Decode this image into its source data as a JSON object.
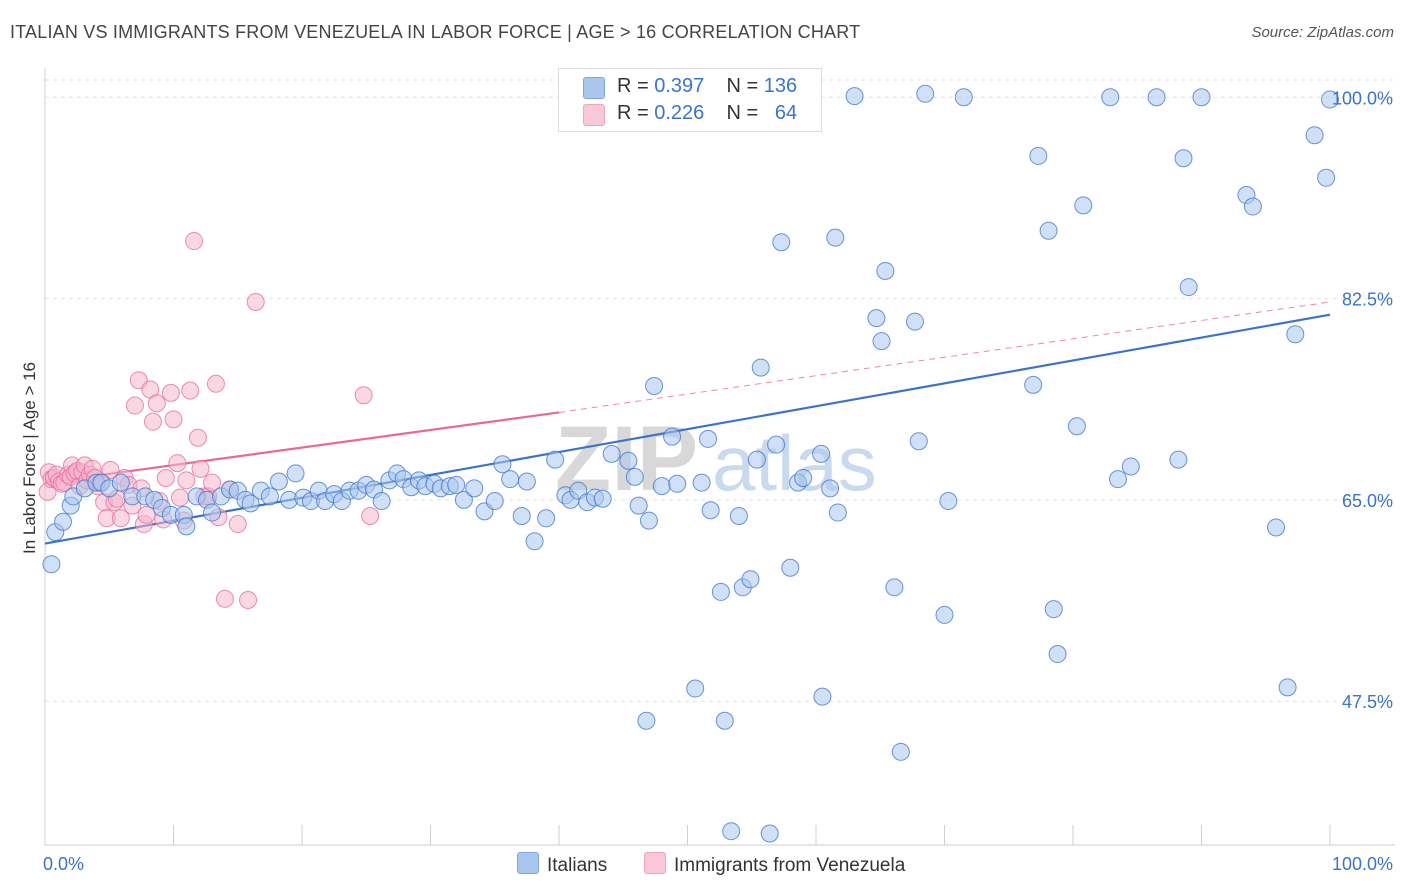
{
  "header": {
    "title": "ITALIAN VS IMMIGRANTS FROM VENEZUELA IN LABOR FORCE | AGE > 16 CORRELATION CHART",
    "source": "Source: ZipAtlas.com"
  },
  "legend": {
    "rows": [
      {
        "r_label": "R =",
        "r_value": "0.397",
        "n_label": "N =",
        "n_value": "136"
      },
      {
        "r_label": "R =",
        "r_value": "0.226",
        "n_label": "N =",
        "n_value": "64"
      }
    ]
  },
  "bottom_legend": {
    "italians": "Italians",
    "venezuela": "Immigrants from Venezuela"
  },
  "watermark": {
    "zip": "ZIP",
    "atlas": "atlas"
  },
  "colors": {
    "blue": "#3b73c8",
    "blue_fill": "#a9c6ee",
    "pink": "#e8689a",
    "pink_fill": "#f4b6cc",
    "grid": "#e3e3e3",
    "axis_label": "#3b73c8"
  },
  "chart_data": {
    "type": "scatter",
    "title": "ITALIAN VS IMMIGRANTS FROM VENEZUELA IN LABOR FORCE | AGE > 16 CORRELATION CHART",
    "xlabel": "",
    "ylabel": "In Labor Force | Age > 16",
    "xlim": [
      0,
      100
    ],
    "ylim": [
      35,
      101.5
    ],
    "x_tick_labels": [
      "0.0%",
      "100.0%"
    ],
    "y_ticks": [
      47.5,
      65.0,
      82.5,
      100.0
    ],
    "y_tick_labels": [
      "47.5%",
      "65.0%",
      "82.5%",
      "100.0%"
    ],
    "grid": true,
    "legend_placement": "top-center",
    "series": [
      {
        "name": "Italians",
        "color": "#3b73c8",
        "R": 0.397,
        "N": 136,
        "trend": {
          "x": [
            0,
            100
          ],
          "y": [
            61.2,
            81.1
          ]
        },
        "points": [
          [
            0.5,
            59.4
          ],
          [
            0.8,
            62.2
          ],
          [
            1.4,
            63.1
          ],
          [
            2.0,
            64.5
          ],
          [
            2.2,
            65.3
          ],
          [
            3.1,
            66.0
          ],
          [
            4.0,
            66.5
          ],
          [
            4.4,
            66.5
          ],
          [
            5.0,
            66.0
          ],
          [
            5.9,
            66.5
          ],
          [
            6.8,
            65.3
          ],
          [
            7.8,
            65.3
          ],
          [
            8.5,
            65.0
          ],
          [
            9.1,
            64.3
          ],
          [
            9.8,
            63.7
          ],
          [
            10.8,
            63.7
          ],
          [
            11.0,
            62.7
          ],
          [
            11.8,
            65.3
          ],
          [
            12.6,
            65.0
          ],
          [
            13.0,
            63.9
          ],
          [
            13.7,
            65.3
          ],
          [
            14.4,
            65.9
          ],
          [
            15.0,
            65.8
          ],
          [
            15.6,
            65.0
          ],
          [
            16.0,
            64.7
          ],
          [
            16.8,
            65.8
          ],
          [
            17.5,
            65.3
          ],
          [
            18.2,
            66.6
          ],
          [
            19.0,
            65.0
          ],
          [
            19.5,
            67.3
          ],
          [
            20.1,
            65.2
          ],
          [
            20.7,
            64.9
          ],
          [
            21.3,
            65.8
          ],
          [
            21.8,
            64.9
          ],
          [
            22.5,
            65.5
          ],
          [
            23.1,
            64.9
          ],
          [
            23.7,
            65.8
          ],
          [
            24.4,
            65.8
          ],
          [
            25.0,
            66.3
          ],
          [
            25.6,
            65.9
          ],
          [
            26.2,
            64.9
          ],
          [
            26.8,
            66.7
          ],
          [
            27.4,
            67.3
          ],
          [
            27.9,
            66.8
          ],
          [
            28.5,
            66.1
          ],
          [
            29.1,
            66.7
          ],
          [
            29.6,
            66.2
          ],
          [
            30.3,
            66.4
          ],
          [
            30.8,
            66.0
          ],
          [
            31.5,
            66.2
          ],
          [
            32.0,
            66.3
          ],
          [
            32.6,
            65.0
          ],
          [
            33.4,
            66.0
          ],
          [
            34.2,
            64.0
          ],
          [
            35.0,
            64.9
          ],
          [
            35.6,
            68.1
          ],
          [
            36.2,
            66.8
          ],
          [
            37.1,
            63.6
          ],
          [
            37.5,
            66.6
          ],
          [
            38.1,
            61.4
          ],
          [
            39.0,
            63.4
          ],
          [
            39.7,
            68.5
          ],
          [
            40.5,
            65.4
          ],
          [
            40.9,
            65.0
          ],
          [
            41.5,
            65.8
          ],
          [
            42.2,
            64.8
          ],
          [
            42.8,
            65.2
          ],
          [
            43.4,
            65.1
          ],
          [
            44.1,
            69.0
          ],
          [
            45.4,
            68.4
          ],
          [
            45.9,
            67.0
          ],
          [
            46.2,
            64.5
          ],
          [
            47.0,
            63.2
          ],
          [
            47.4,
            74.9
          ],
          [
            48.0,
            66.2
          ],
          [
            48.8,
            70.5
          ],
          [
            49.2,
            66.4
          ],
          [
            50.6,
            48.6
          ],
          [
            51.1,
            66.5
          ],
          [
            51.6,
            70.3
          ],
          [
            51.8,
            64.1
          ],
          [
            52.6,
            57.0
          ],
          [
            52.9,
            45.8
          ],
          [
            53.4,
            36.2
          ],
          [
            54.0,
            63.6
          ],
          [
            54.3,
            57.4
          ],
          [
            54.9,
            58.1
          ],
          [
            55.4,
            68.5
          ],
          [
            55.7,
            76.5
          ],
          [
            56.4,
            36.0
          ],
          [
            56.9,
            69.8
          ],
          [
            57.3,
            87.4
          ],
          [
            58.0,
            59.1
          ],
          [
            58.6,
            66.5
          ],
          [
            59.0,
            66.9
          ],
          [
            60.4,
            69.0
          ],
          [
            60.5,
            47.9
          ],
          [
            61.1,
            66.0
          ],
          [
            61.5,
            87.8
          ],
          [
            61.7,
            63.9
          ],
          [
            63.0,
            100.1
          ],
          [
            64.7,
            80.8
          ],
          [
            65.1,
            78.8
          ],
          [
            66.1,
            57.4
          ],
          [
            66.6,
            43.1
          ],
          [
            68.0,
            70.1
          ],
          [
            68.5,
            100.3
          ],
          [
            70.0,
            55.0
          ],
          [
            70.3,
            64.9
          ],
          [
            71.5,
            100.0
          ],
          [
            76.9,
            75.0
          ],
          [
            78.1,
            88.4
          ],
          [
            78.5,
            55.5
          ],
          [
            78.8,
            51.6
          ],
          [
            80.3,
            71.4
          ],
          [
            80.8,
            90.6
          ],
          [
            82.9,
            100.0
          ],
          [
            83.5,
            66.8
          ],
          [
            84.5,
            67.9
          ],
          [
            86.5,
            100.0
          ],
          [
            88.2,
            68.5
          ],
          [
            89.0,
            83.5
          ],
          [
            90.0,
            100.0
          ],
          [
            93.5,
            91.5
          ],
          [
            94.0,
            90.5
          ],
          [
            95.8,
            62.6
          ],
          [
            96.7,
            48.7
          ],
          [
            97.3,
            79.4
          ],
          [
            98.8,
            96.7
          ],
          [
            99.7,
            93.0
          ],
          [
            100.0,
            99.8
          ],
          [
            88.6,
            94.7
          ],
          [
            77.3,
            94.9
          ],
          [
            67.7,
            80.5
          ],
          [
            46.8,
            45.8
          ],
          [
            65.4,
            84.9
          ]
        ]
      },
      {
        "name": "Immigrants from Venezuela",
        "color": "#e8689a",
        "R": 0.226,
        "N": 64,
        "trend": {
          "x": [
            0,
            40
          ],
          "y": [
            66.5,
            72.6
          ],
          "dashed_to": [
            100,
            82.2
          ]
        },
        "points": [
          [
            0.2,
            65.7
          ],
          [
            0.3,
            67.4
          ],
          [
            0.5,
            66.8
          ],
          [
            0.7,
            66.9
          ],
          [
            0.9,
            67.2
          ],
          [
            1.1,
            66.6
          ],
          [
            1.3,
            66.4
          ],
          [
            1.5,
            66.5
          ],
          [
            1.8,
            67.2
          ],
          [
            2.0,
            67.0
          ],
          [
            2.1,
            68.0
          ],
          [
            2.3,
            67.3
          ],
          [
            2.5,
            67.5
          ],
          [
            2.7,
            66.2
          ],
          [
            2.9,
            67.4
          ],
          [
            3.1,
            68.0
          ],
          [
            3.3,
            66.7
          ],
          [
            3.5,
            67.2
          ],
          [
            3.7,
            67.7
          ],
          [
            3.9,
            66.9
          ],
          [
            4.1,
            66.2
          ],
          [
            4.3,
            66.5
          ],
          [
            4.6,
            64.8
          ],
          [
            4.8,
            63.4
          ],
          [
            5.1,
            67.6
          ],
          [
            5.4,
            64.8
          ],
          [
            5.6,
            65.1
          ],
          [
            5.9,
            63.4
          ],
          [
            6.2,
            66.9
          ],
          [
            6.5,
            66.3
          ],
          [
            6.8,
            64.5
          ],
          [
            7.0,
            73.2
          ],
          [
            7.3,
            75.4
          ],
          [
            7.5,
            66.0
          ],
          [
            7.7,
            62.9
          ],
          [
            7.9,
            63.7
          ],
          [
            8.2,
            74.6
          ],
          [
            8.4,
            71.8
          ],
          [
            8.7,
            73.4
          ],
          [
            8.9,
            64.9
          ],
          [
            9.2,
            63.3
          ],
          [
            9.4,
            66.9
          ],
          [
            9.8,
            74.3
          ],
          [
            10.0,
            72.0
          ],
          [
            10.3,
            68.2
          ],
          [
            10.5,
            65.2
          ],
          [
            10.8,
            63.2
          ],
          [
            11.0,
            66.7
          ],
          [
            11.3,
            74.5
          ],
          [
            11.6,
            87.5
          ],
          [
            11.9,
            70.4
          ],
          [
            12.1,
            67.7
          ],
          [
            12.4,
            65.3
          ],
          [
            12.7,
            65.3
          ],
          [
            13.0,
            66.5
          ],
          [
            13.3,
            75.1
          ],
          [
            13.5,
            63.5
          ],
          [
            14.0,
            56.4
          ],
          [
            14.4,
            65.9
          ],
          [
            15.0,
            62.9
          ],
          [
            15.8,
            56.3
          ],
          [
            16.4,
            82.2
          ],
          [
            24.8,
            74.1
          ],
          [
            25.3,
            63.6
          ]
        ]
      }
    ]
  }
}
